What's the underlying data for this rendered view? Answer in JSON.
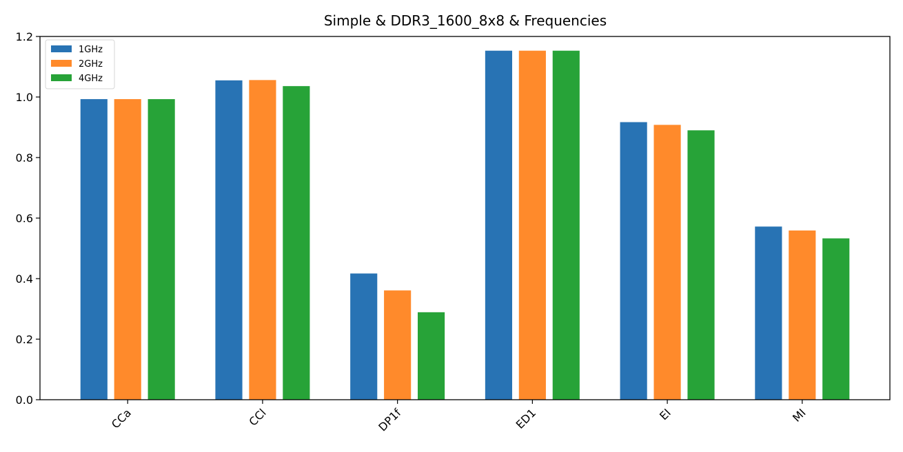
{
  "chart_data": {
    "type": "bar",
    "title": "Simple & DDR3_1600_8x8 & Frequencies",
    "xlabel": "",
    "ylabel": "",
    "categories": [
      "CCa",
      "CCl",
      "DP1f",
      "ED1",
      "EI",
      "MI"
    ],
    "series": [
      {
        "name": "1GHz",
        "color": "#2873b4",
        "values": [
          0.993,
          1.055,
          0.417,
          1.153,
          0.917,
          0.572
        ]
      },
      {
        "name": "2GHz",
        "color": "#ff8a2b",
        "values": [
          0.993,
          1.056,
          0.361,
          1.153,
          0.908,
          0.559
        ]
      },
      {
        "name": "4GHz",
        "color": "#27a338",
        "values": [
          0.993,
          1.036,
          0.289,
          1.153,
          0.89,
          0.533
        ]
      }
    ],
    "ylim": [
      0,
      1.2
    ],
    "yticks": [
      0.0,
      0.2,
      0.4,
      0.6,
      0.8,
      1.0,
      1.2
    ],
    "ytick_labels": [
      "0.0",
      "0.2",
      "0.4",
      "0.6",
      "0.8",
      "1.0",
      "1.2"
    ],
    "grid": false,
    "legend_position": "top-left",
    "xtick_rotation": "45°"
  }
}
